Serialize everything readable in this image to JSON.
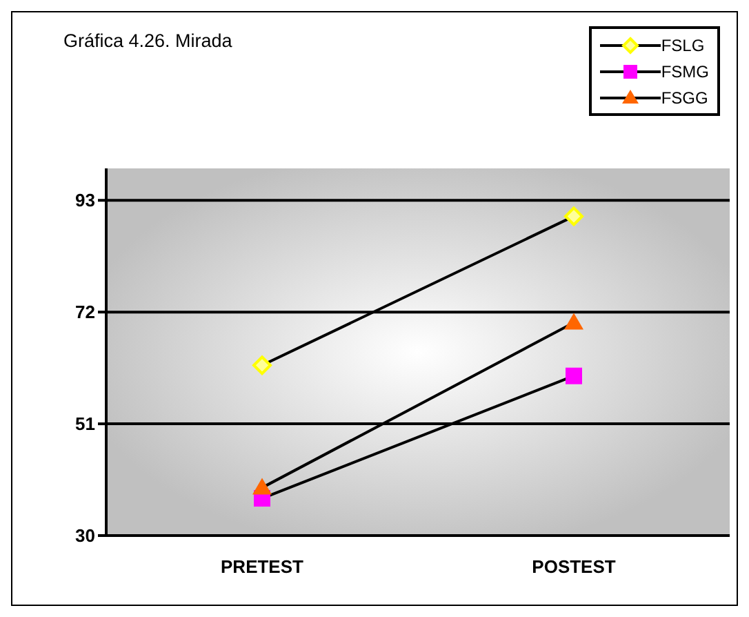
{
  "chart_data": {
    "type": "line",
    "title": "Gráfica 4.26. Mirada",
    "categories": [
      "PRETEST",
      "POSTEST"
    ],
    "series": [
      {
        "name": "FSLG",
        "color": "#ffff00",
        "marker": "diamond",
        "values": [
          62,
          90
        ]
      },
      {
        "name": "FSMG",
        "color": "#ff00ff",
        "marker": "square",
        "values": [
          37,
          60
        ]
      },
      {
        "name": "FSGG",
        "color": "#ff6600",
        "marker": "triangle",
        "values": [
          39,
          70
        ]
      }
    ],
    "ylim": [
      30,
      99
    ],
    "yticks": [
      30,
      51,
      72,
      93
    ],
    "grid": "y",
    "legend": "top right"
  }
}
